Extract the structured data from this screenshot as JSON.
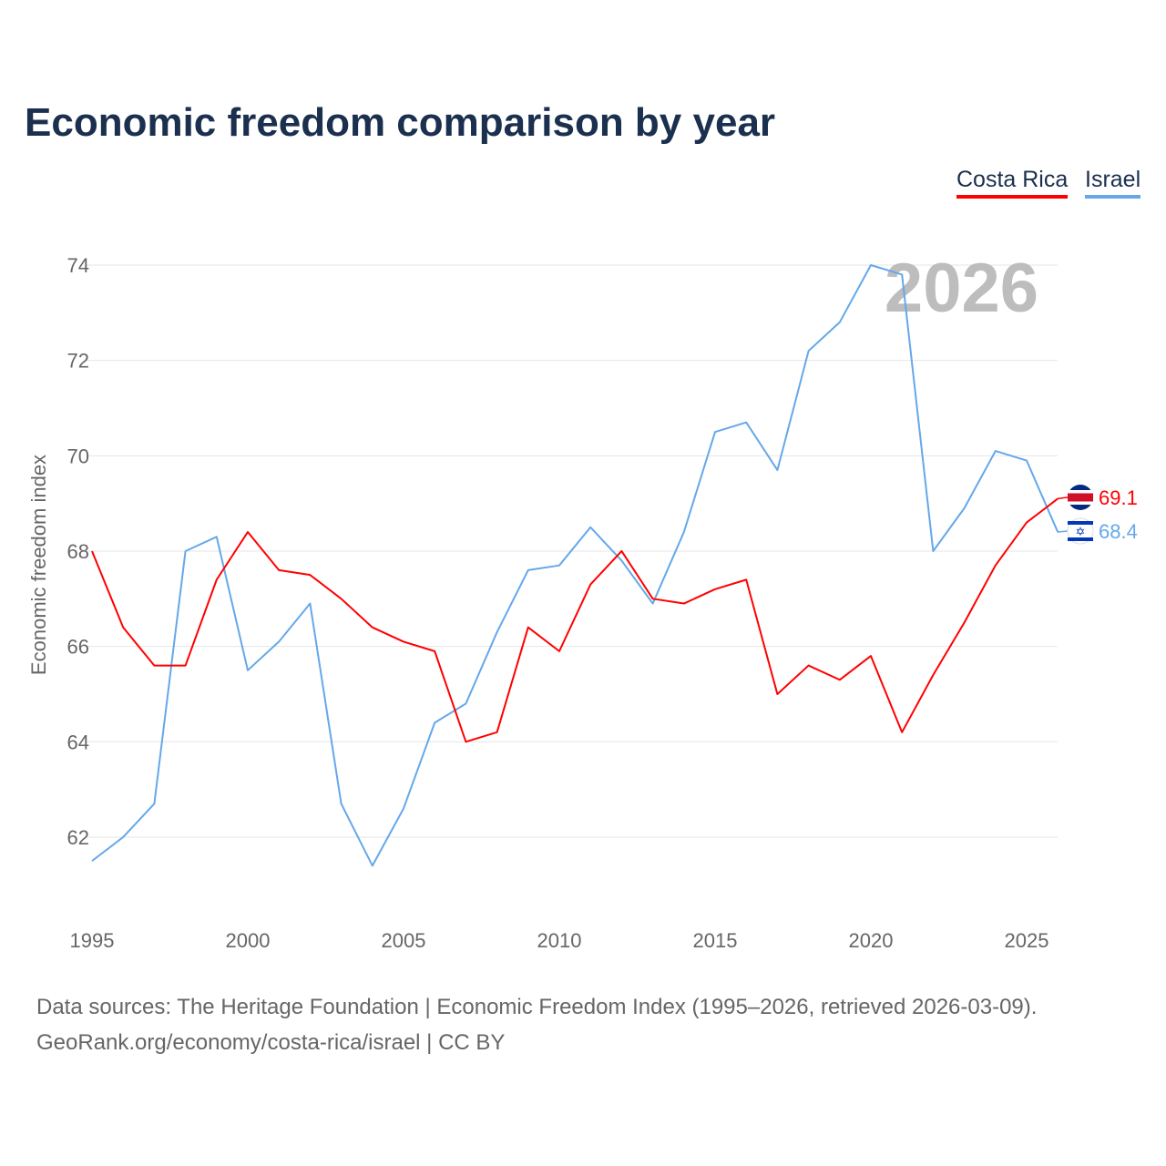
{
  "chart_data": {
    "type": "line",
    "title": "Economic freedom comparison by year",
    "xlabel": "",
    "ylabel": "Economic freedom index",
    "watermark_year": "2026",
    "x": [
      1995,
      1996,
      1997,
      1998,
      1999,
      2000,
      2001,
      2002,
      2003,
      2004,
      2005,
      2006,
      2007,
      2008,
      2009,
      2010,
      2011,
      2012,
      2013,
      2014,
      2015,
      2016,
      2017,
      2018,
      2019,
      2020,
      2021,
      2022,
      2023,
      2024,
      2025,
      2026
    ],
    "xticks": [
      1995,
      2000,
      2005,
      2010,
      2015,
      2020,
      2025
    ],
    "yticks": [
      62,
      64,
      66,
      68,
      70,
      72,
      74
    ],
    "ylim": [
      60.8,
      75
    ],
    "grid": true,
    "legend_position": "top-right",
    "series": [
      {
        "name": "Costa Rica",
        "color": "#ff0000",
        "end_label": "69.1",
        "values": [
          68.0,
          66.4,
          65.6,
          65.6,
          67.4,
          68.4,
          67.6,
          67.5,
          67.0,
          66.4,
          66.1,
          65.9,
          64.0,
          64.2,
          66.4,
          65.9,
          67.3,
          68.0,
          67.0,
          66.9,
          67.2,
          67.4,
          65.0,
          65.6,
          65.3,
          65.8,
          64.2,
          65.4,
          66.5,
          67.7,
          68.6,
          69.1
        ]
      },
      {
        "name": "Israel",
        "color": "#64a8ea",
        "end_label": "68.4",
        "values": [
          61.5,
          62.0,
          62.7,
          68.0,
          68.3,
          65.5,
          66.1,
          66.9,
          62.7,
          61.4,
          62.6,
          64.4,
          64.8,
          66.3,
          67.6,
          67.7,
          68.5,
          67.8,
          66.9,
          68.4,
          70.5,
          70.7,
          69.7,
          72.2,
          72.8,
          74.0,
          73.8,
          68.0,
          68.9,
          70.1,
          69.9,
          68.4
        ]
      }
    ]
  },
  "source": {
    "line1": "Data sources: The Heritage Foundation | Economic Freedom Index (1995–2026, retrieved 2026-03-09).",
    "line2": "GeoRank.org/economy/costa-rica/israel | CC BY"
  }
}
